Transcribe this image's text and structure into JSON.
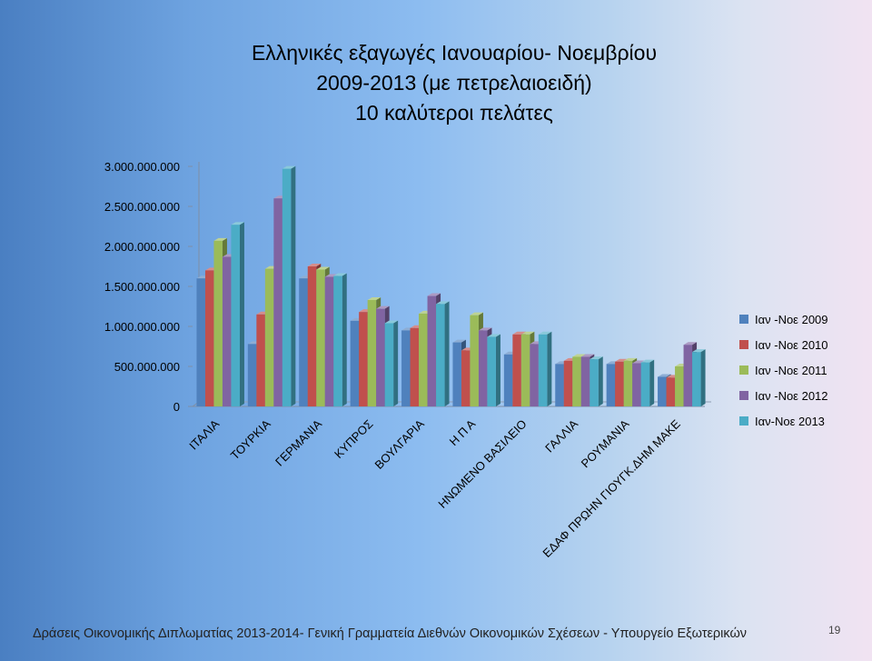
{
  "slide": {
    "title_lines": [
      "Ελληνικές εξαγωγές Ιανουαρίου- Νοεμβρίου",
      "2009-2013 (με πετρελαιοειδή)",
      "10 καλύτεροι πελάτες"
    ],
    "footer": "Δράσεις Οικονομικής Διπλωματίας 2013-2014- Γενική Γραμματεία Διεθνών Οικονομικών Σχέσεων  - Υπουργείο Εξωτερικών",
    "page_number": "19"
  },
  "chart_data": {
    "type": "bar",
    "title": "Ελληνικές εξαγωγές Ιανουαρίου- Νοεμβρίου 2009-2013 (με πετρελαιοειδή) 10 καλύτεροι πελάτες",
    "xlabel": "",
    "ylabel": "",
    "ylim": [
      0,
      3000000000
    ],
    "y_ticks": [
      0,
      500000000,
      1000000000,
      1500000000,
      2000000000,
      2500000000,
      3000000000
    ],
    "y_tick_labels": [
      "0",
      "500.000.000",
      "1.000.000.000",
      "1.500.000.000",
      "2.000.000.000",
      "2.500.000.000",
      "3.000.000.000"
    ],
    "grid": false,
    "legend_position": "right",
    "categories": [
      "ΙΤΑΛΙΑ",
      "ΤΟΥΡΚΙΑ",
      "ΓΕΡΜΑΝΙΑ",
      "ΚΥΠΡΟΣ",
      "ΒΟΥΛΓΑΡΙΑ",
      "Η Π Α",
      "ΗΝΩΜΕΝΟ ΒΑΣΙΛΕΙΟ",
      "ΓΑΛΛΙΑ",
      "ΡΟΥΜΑΝΙΑ",
      "ΕΔΑΦ ΠΡΩΗΝ ΓΙΟΥΓΚ.ΔΗΜ ΜΑΚΕ"
    ],
    "series": [
      {
        "name": "Ιαν -Νοε 2009",
        "color": "#4f81bd",
        "values": [
          1600000000,
          780000000,
          1600000000,
          1070000000,
          950000000,
          800000000,
          650000000,
          530000000,
          530000000,
          370000000
        ]
      },
      {
        "name": "Ιαν -Νοε 2010",
        "color": "#c0504d",
        "values": [
          1700000000,
          1150000000,
          1750000000,
          1180000000,
          980000000,
          700000000,
          900000000,
          570000000,
          560000000,
          360000000
        ]
      },
      {
        "name": "Ιαν -Νοε 2011",
        "color": "#9bbb59",
        "values": [
          2070000000,
          1720000000,
          1710000000,
          1330000000,
          1160000000,
          1140000000,
          900000000,
          620000000,
          570000000,
          500000000
        ]
      },
      {
        "name": "Ιαν -Νοε 2012",
        "color": "#8064a2",
        "values": [
          1870000000,
          2600000000,
          1620000000,
          1220000000,
          1380000000,
          950000000,
          780000000,
          620000000,
          540000000,
          770000000
        ]
      },
      {
        "name": "Ιαν-Νοε 2013",
        "color": "#4bacc6",
        "values": [
          2270000000,
          2970000000,
          1630000000,
          1040000000,
          1280000000,
          870000000,
          900000000,
          590000000,
          550000000,
          680000000
        ]
      }
    ]
  }
}
